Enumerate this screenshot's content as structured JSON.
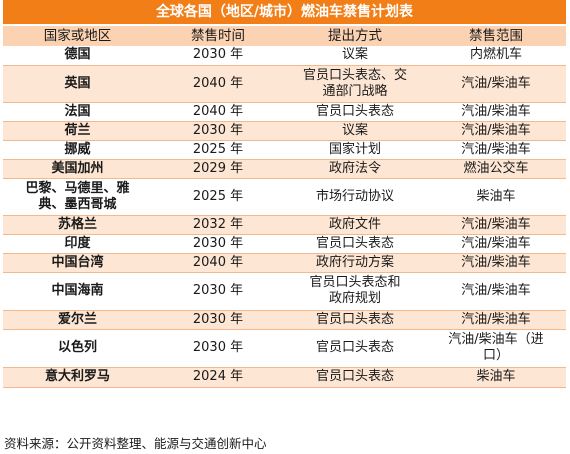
{
  "table": {
    "title": "全球各国（地区/城市）燃油车禁售计划表",
    "headers": [
      "国家或地区",
      "禁售时间",
      "提出方式",
      "禁售范围"
    ],
    "rows": [
      [
        "德国",
        "2030 年",
        "议案",
        "内燃机车"
      ],
      [
        "英国",
        "2040 年",
        "官员口头表态、交\n通部门战略",
        "汽油/柴油车"
      ],
      [
        "法国",
        "2040 年",
        "官员口头表态",
        "汽油/柴油车"
      ],
      [
        "荷兰",
        "2030 年",
        "议案",
        "汽油/柴油车"
      ],
      [
        "挪威",
        "2025 年",
        "国家计划",
        "汽油/柴油车"
      ],
      [
        "美国加州",
        "2029 年",
        "政府法令",
        "燃油公交车"
      ],
      [
        "巴黎、马德里、雅\n典、墨西哥城",
        "2025 年",
        "市场行动协议",
        "柴油车"
      ],
      [
        "苏格兰",
        "2032 年",
        "政府文件",
        "汽油/柴油车"
      ],
      [
        "印度",
        "2030 年",
        "官员口头表态",
        "汽油/柴油车"
      ],
      [
        "中国台湾",
        "2040 年",
        "政府行动方案",
        "汽油/柴油车"
      ],
      [
        "中国海南",
        "2030 年",
        "官员口头表态和\n政府规划",
        "汽油/柴油车"
      ],
      [
        "爱尔兰",
        "2030 年",
        "官员口头表态",
        "汽油/柴油车"
      ],
      [
        "以色列",
        "2030 年",
        "官员口头表态",
        "汽油/柴油车（进\n口）"
      ],
      [
        "意大利罗马",
        "2024 年",
        "官员口头表态",
        "柴油车"
      ]
    ]
  },
  "source": "资料来源：公开资料整理、能源与交通创新中心"
}
